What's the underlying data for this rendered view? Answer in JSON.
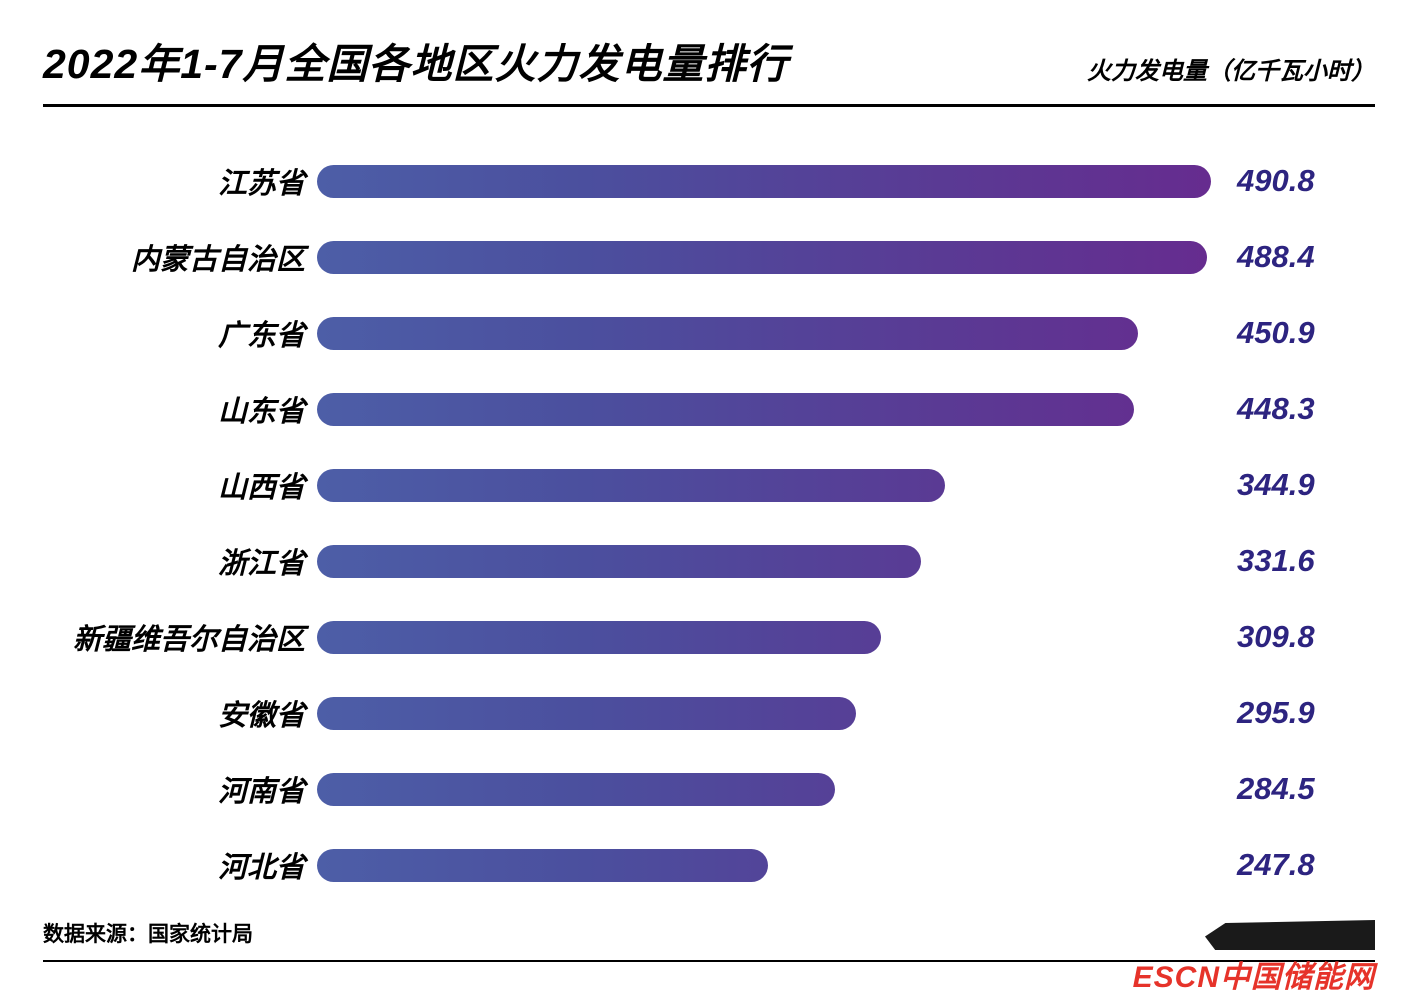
{
  "header": {
    "title": "2022年1-7月全国各地区火力发电量排行",
    "unit_label": "火力发电量（亿千瓦小时）"
  },
  "chart_data": {
    "type": "bar",
    "orientation": "horizontal",
    "title": "2022年1-7月全国各地区火力发电量排行",
    "xlabel": "火力发电量（亿千瓦小时）",
    "ylabel": "",
    "categories": [
      "江苏省",
      "内蒙古自治区",
      "广东省",
      "山东省",
      "山西省",
      "浙江省",
      "新疆维吾尔自治区",
      "安徽省",
      "河南省",
      "河北省"
    ],
    "values": [
      490.8,
      488.4,
      450.9,
      448.3,
      344.9,
      331.6,
      309.8,
      295.9,
      284.5,
      247.8
    ],
    "xlim": [
      0,
      490.8
    ],
    "grid": false,
    "legend": false,
    "bar_gradient": [
      "#4d5ea7",
      "#662c8f"
    ],
    "value_label_color": "#2d2480"
  },
  "footer": {
    "source": "数据来源：国家统计局",
    "logo_text": "ESCN中国储能网",
    "logo_color": "#e6332a"
  }
}
